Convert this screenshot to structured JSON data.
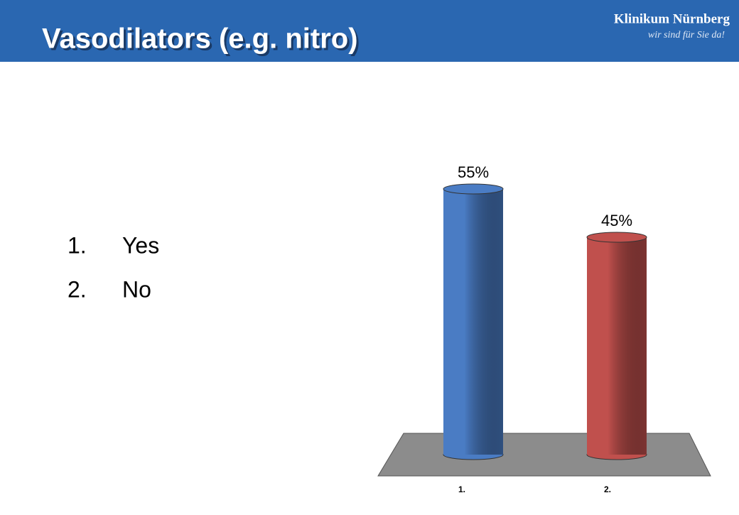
{
  "header": {
    "title": "Vasodilators (e.g. nitro)",
    "logo": "Klinikum Nürnberg",
    "tagline": "wir sind für Sie da!"
  },
  "list": [
    {
      "number": "1.",
      "text": "Yes"
    },
    {
      "number": "2.",
      "text": "No"
    }
  ],
  "chart_data": {
    "type": "bar",
    "categories": [
      "1.",
      "2."
    ],
    "values": [
      55,
      45
    ],
    "value_labels": [
      "55%",
      "45%"
    ],
    "colors": [
      "#4a7cc4",
      "#c0504d"
    ]
  }
}
